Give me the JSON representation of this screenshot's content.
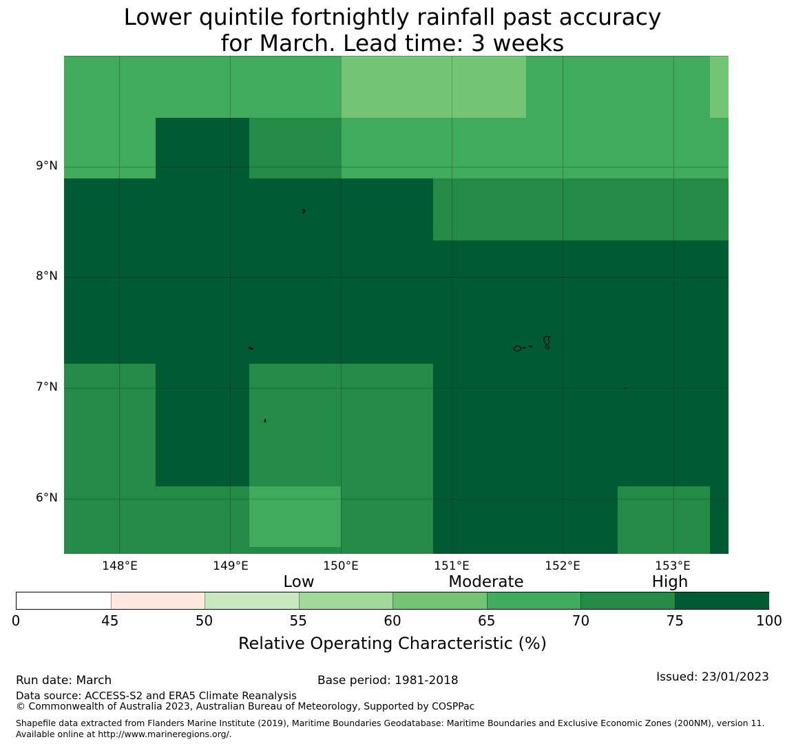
{
  "title": {
    "line1": "Lower quintile fortnightly rainfall past accuracy",
    "line2": "for March. Lead time: 3 weeks"
  },
  "map": {
    "longitude_range": [
      147.5,
      153.5
    ],
    "latitude_range": [
      5.5,
      10.0
    ],
    "lat_ticks": [
      "9°N",
      "8°N",
      "7°N",
      "6°N"
    ],
    "lon_ticks": [
      "148°E",
      "149°E",
      "150°E",
      "151°E",
      "152°E",
      "153°E"
    ],
    "grid_columns_lon_edges": [
      147.5,
      148.33,
      149.17,
      150.0,
      150.83,
      151.67,
      152.5,
      153.33,
      153.5
    ],
    "grid_rows_lat_edges": [
      10.0,
      9.44,
      8.89,
      8.33,
      7.78,
      7.22,
      6.67,
      6.11,
      5.56,
      5.5
    ],
    "roc_class_grid": [
      [
        70,
        70,
        70,
        65,
        65,
        70,
        70,
        65
      ],
      [
        70,
        75,
        72,
        70,
        70,
        70,
        70,
        70
      ],
      [
        75,
        75,
        75,
        75,
        72,
        72,
        72,
        72
      ],
      [
        75,
        75,
        75,
        75,
        75,
        75,
        75,
        75
      ],
      [
        75,
        75,
        75,
        75,
        75,
        75,
        75,
        75
      ],
      [
        72,
        75,
        72,
        72,
        75,
        75,
        75,
        75
      ],
      [
        72,
        75,
        72,
        72,
        75,
        75,
        75,
        75
      ],
      [
        72,
        72,
        70,
        72,
        75,
        75,
        72,
        75
      ],
      [
        72,
        72,
        72,
        72,
        75,
        75,
        72,
        75
      ]
    ],
    "class_colors": {
      "65": "#74c476",
      "70": "#41ab5d",
      "72": "#238b45",
      "75": "#005a32"
    }
  },
  "legend": {
    "categories": [
      "Low",
      "Moderate",
      "High"
    ],
    "ticks": [
      "0",
      "45",
      "50",
      "55",
      "60",
      "65",
      "70",
      "75",
      "100"
    ],
    "segments": [
      {
        "from": 0,
        "to": 45,
        "color": "#ffffff"
      },
      {
        "from": 45,
        "to": 50,
        "color": "#fee8df"
      },
      {
        "from": 50,
        "to": 55,
        "color": "#c7e9c0"
      },
      {
        "from": 55,
        "to": 60,
        "color": "#a1d99b"
      },
      {
        "from": 60,
        "to": 65,
        "color": "#74c476"
      },
      {
        "from": 65,
        "to": 70,
        "color": "#41ab5d"
      },
      {
        "from": 70,
        "to": 75,
        "color": "#238b45"
      },
      {
        "from": 75,
        "to": 100,
        "color": "#005a32"
      }
    ],
    "label": "Relative Operating Characteristic (%)"
  },
  "footer": {
    "run_date": "Run date: March",
    "base_period": "Base period: 1981-2018",
    "issued": "Issued: 23/01/2023",
    "data_source": "Data source: ACCESS-S2 and ERA5 Climate Reanalysis",
    "copyright": "© Commonwealth of Australia 2023, Australian Bureau of Meteorology, Supported by COSPPac",
    "shapefile": "Shapefile data extracted from Flanders Marine Institute (2019), Maritime Boundaries Geodatabase: Maritime Boundaries and Exclusive Economic Zones (200NM), version 11. Available online at http://www.marineregions.org/."
  }
}
